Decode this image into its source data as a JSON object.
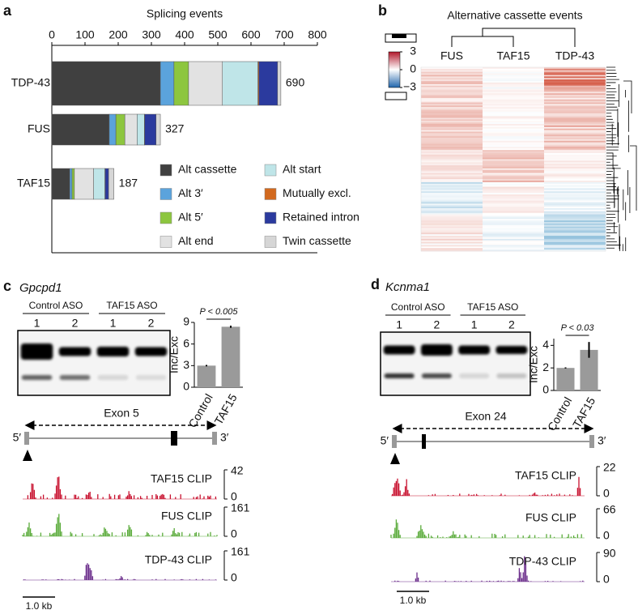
{
  "chart_data": [
    {
      "type": "stacked-bar",
      "orientation": "horizontal",
      "panel_label": "a",
      "title": "Splicing events",
      "categories": [
        "TDP-43",
        "FUS",
        "TAF15"
      ],
      "series": [
        {
          "name": "Alt cassette",
          "color": "#404040",
          "values": [
            327,
            173,
            54
          ]
        },
        {
          "name": "Alt 3′",
          "color": "#5ba3dc",
          "values": [
            41,
            20,
            7
          ]
        },
        {
          "name": "Alt 5′",
          "color": "#8dc63f",
          "values": [
            44,
            27,
            7
          ]
        },
        {
          "name": "Alt end",
          "color": "#e2e2e2",
          "values": [
            102,
            37,
            58
          ]
        },
        {
          "name": "Alt start",
          "color": "#bfe5e8",
          "values": [
            107,
            22,
            34
          ]
        },
        {
          "name": "Mutually excl.",
          "color": "#d2691e",
          "values": [
            3,
            1,
            1
          ]
        },
        {
          "name": "Retained intron",
          "color": "#2b3a9e",
          "values": [
            56,
            34,
            10
          ]
        },
        {
          "name": "Twin cassette",
          "color": "#d6d6d6",
          "values": [
            10,
            13,
            16
          ]
        }
      ],
      "totals": [
        690,
        327,
        187
      ],
      "xlim": [
        0,
        800
      ],
      "xticks": [
        0,
        100,
        200,
        300,
        400,
        500,
        600,
        700,
        800
      ]
    },
    {
      "type": "heatmap",
      "panel_label": "b",
      "title": "Alternative cassette events",
      "columns": [
        "FUS",
        "TAF15",
        "TDP-43"
      ],
      "colorbar_lim": [
        -3,
        3
      ],
      "colorbar_ticks": [
        3,
        0,
        {
          "value": -3,
          "label": "−3"
        }
      ]
    },
    {
      "type": "bar",
      "panel_label": "c",
      "gene": "Gpcpd1",
      "gel": {
        "group_labels": [
          "Control ASO",
          "TAF15 ASO"
        ],
        "lane_labels": [
          "1",
          "2",
          "1",
          "2"
        ]
      },
      "ylabel": "Inc/Exc",
      "categories": [
        "Control",
        "TAF15"
      ],
      "values": [
        3.0,
        8.4
      ],
      "errors": [
        0.1,
        0.15
      ],
      "color": "#9a9a9a",
      "ylim": [
        0,
        9
      ],
      "yticks": [
        0,
        3,
        6,
        9
      ],
      "annotation": "P < 0.005",
      "exon_label": "Exon 5",
      "end_labels": [
        "5′",
        "3′"
      ],
      "tracks": [
        {
          "name": "TAF15 CLIP",
          "color": "#c8102e",
          "max": 42,
          "min": 0
        },
        {
          "name": "FUS CLIP",
          "color": "#5aab3a",
          "max": 161,
          "min": 0
        },
        {
          "name": "TDP-43 CLIP",
          "color": "#6a2c8a",
          "max": 161,
          "min": 0
        }
      ],
      "scale_bar": "1.0 kb"
    },
    {
      "type": "bar",
      "panel_label": "d",
      "gene": "Kcnma1",
      "gel": {
        "group_labels": [
          "Control ASO",
          "TAF15 ASO"
        ],
        "lane_labels": [
          "1",
          "2",
          "1",
          "2"
        ]
      },
      "ylabel": "Inc/Exc",
      "categories": [
        "Control",
        "TAF15"
      ],
      "values": [
        2.0,
        3.6
      ],
      "errors": [
        0.05,
        0.7
      ],
      "color": "#9a9a9a",
      "ylim": [
        0,
        4.6
      ],
      "yticks": [
        0,
        2,
        4
      ],
      "annotation": "P < 0.03",
      "exon_label": "Exon 24",
      "end_labels": [
        "5′",
        "3′"
      ],
      "tracks": [
        {
          "name": "TAF15 CLIP",
          "color": "#c8102e",
          "max": 22,
          "min": 0
        },
        {
          "name": "FUS CLIP",
          "color": "#5aab3a",
          "max": 66,
          "min": 0
        },
        {
          "name": "TDP-43 CLIP",
          "color": "#6a2c8a",
          "max": 90,
          "min": 0
        }
      ],
      "scale_bar": "1.0 kb"
    }
  ]
}
